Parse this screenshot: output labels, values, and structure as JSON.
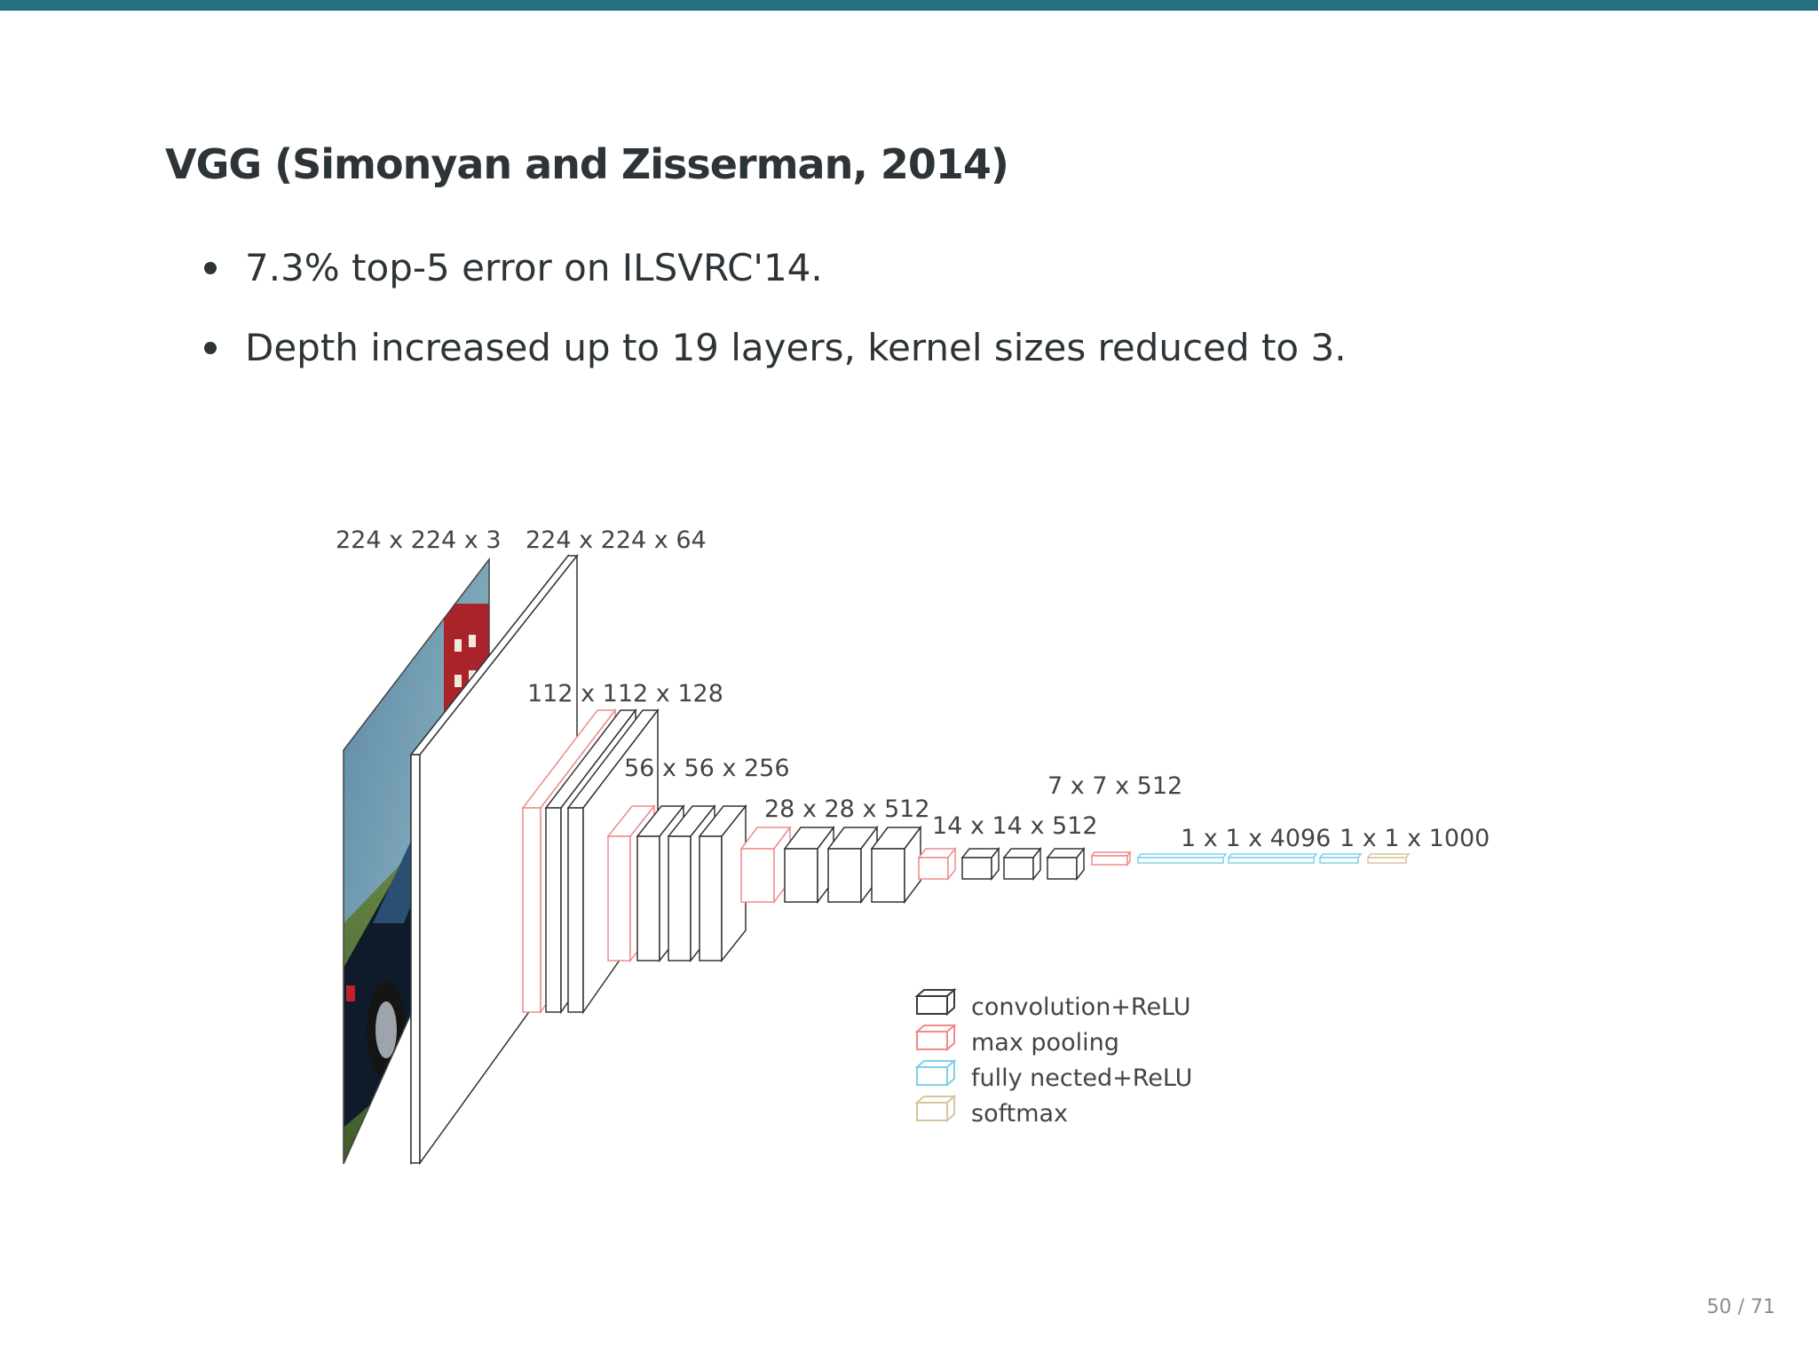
{
  "slide": {
    "title": "VGG (Simonyan and Zisserman, 2014)",
    "bullets": [
      "7.3% top-5 error on ILSVRC'14.",
      "Depth increased up to 19 layers, kernel sizes reduced to 3."
    ],
    "page": "50 / 71",
    "accent_color": "#23707f"
  },
  "diagram": {
    "dimension_labels": [
      "224 x 224 x 3",
      "224 x 224 x 64",
      "112 x 112 x 128",
      "56 x 56 x 256",
      "28 x 28 x 512",
      "14 x 14 x 512",
      "7 x 7 x 512",
      "1 x 1 x 4096",
      "1 x 1 x 1000"
    ],
    "legend": [
      {
        "label": "convolution+ReLU",
        "color": "#3a3a3a"
      },
      {
        "label": "max pooling",
        "color": "#ef8a8a"
      },
      {
        "label": "fully nected+ReLU",
        "color": "#7fd0ea"
      },
      {
        "label": "softmax",
        "color": "#d8c49c"
      }
    ]
  }
}
